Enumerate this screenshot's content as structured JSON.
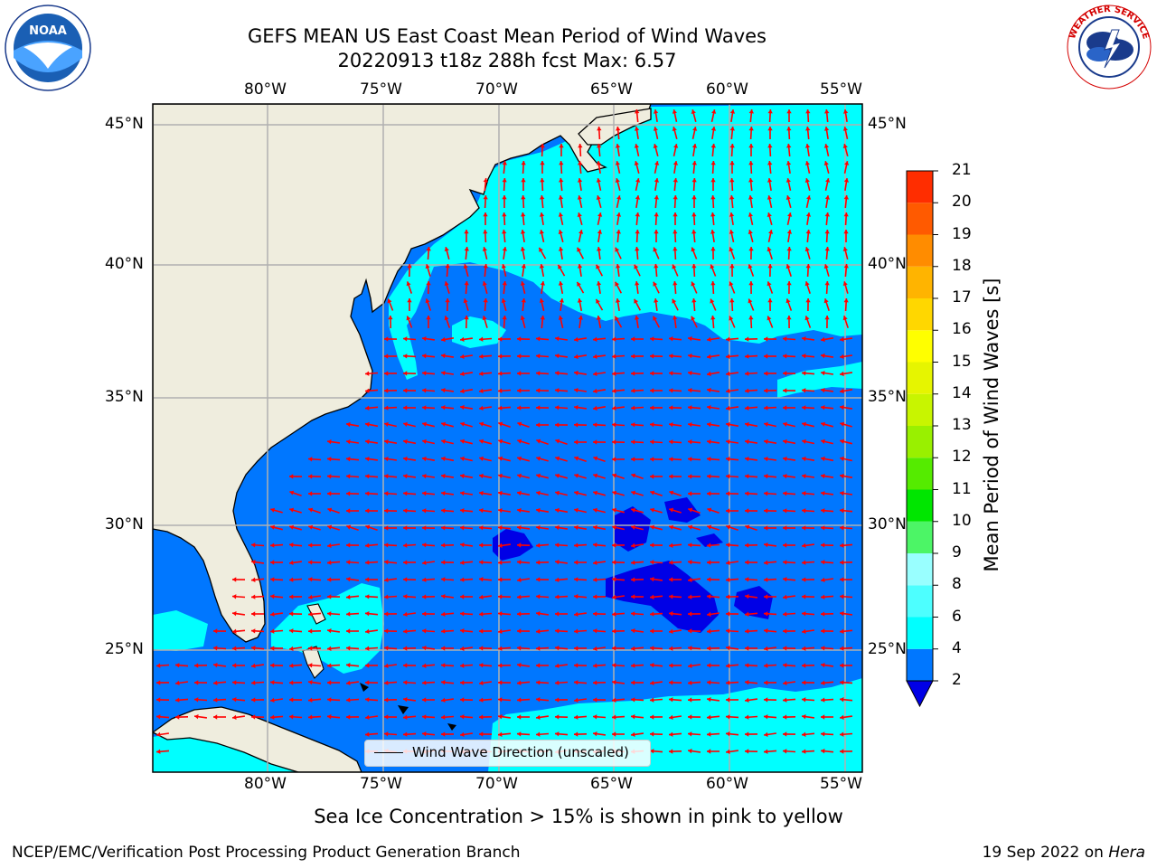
{
  "header": {
    "title_line1": "GEFS MEAN US East Coast Mean Period of Wind Waves",
    "title_line2": "20220913 t18z 288h fcst   Max: 6.57"
  },
  "logos": {
    "left": {
      "name": "noaa-logo",
      "text": "NOAA",
      "ring_text": "NATIONAL OCEANIC AND ATMOSPHERIC ADMINISTRATION · U.S. DEPARTMENT OF COMMERCE"
    },
    "right": {
      "name": "nws-logo",
      "ring_text": "NATIONAL WEATHER SERVICE"
    }
  },
  "map": {
    "extent": {
      "lon_min": -85,
      "lon_max": -54.3,
      "lat_min": 20.5,
      "lat_max": 45.8
    },
    "lon_labels": [
      "80°W",
      "75°W",
      "70°W",
      "65°W",
      "60°W",
      "55°W"
    ],
    "lat_labels": [
      "45°N",
      "40°N",
      "35°N",
      "30°N",
      "25°N"
    ],
    "colors": {
      "land": "#efedde",
      "ocean_low": "#0077ff",
      "ocean_mid": "#00ffff",
      "ocean_min": "#0000e6",
      "grid": "#b0b0b0",
      "arrow": "#ff0000"
    }
  },
  "legend": {
    "label": "Wind Wave Direction (unscaled)"
  },
  "colorbar": {
    "title": "Mean Period of Wind Waves [s]",
    "ticks": [
      "2",
      "4",
      "6",
      "8",
      "9",
      "10",
      "11",
      "12",
      "13",
      "14",
      "15",
      "16",
      "17",
      "18",
      "19",
      "20",
      "21"
    ],
    "colors": [
      "#0077ff",
      "#00ffff",
      "#4dffff",
      "#99ffff",
      "#4cf566",
      "#00e600",
      "#55eb00",
      "#99f000",
      "#c8f500",
      "#e6f500",
      "#ffff00",
      "#ffd700",
      "#ffb400",
      "#ff8c00",
      "#ff5a00",
      "#ff2d00",
      "#ff0000"
    ],
    "extend_color": "#0000e6"
  },
  "notes": {
    "sea_ice": "Sea Ice Concentration > 15% is shown in pink to yellow",
    "footer_left": "NCEP/EMC/Verification Post Processing Product Generation Branch",
    "footer_right_date": "19 Sep 2022 on ",
    "footer_right_machine": "Hera"
  }
}
